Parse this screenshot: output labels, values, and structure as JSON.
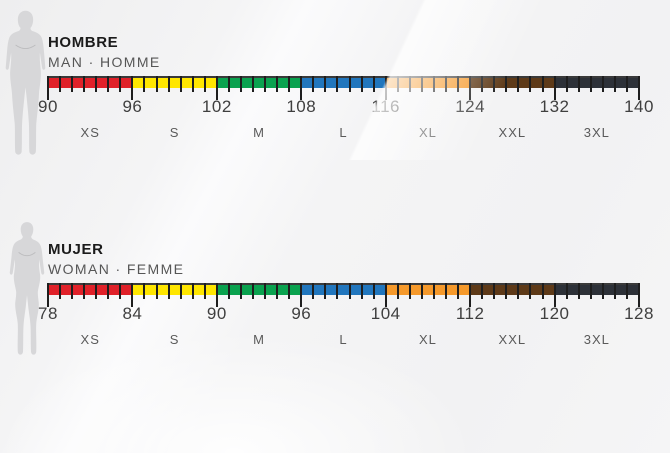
{
  "sections": [
    {
      "id": "men",
      "title": "HOMBRE",
      "subtitle": "MAN · HOMME",
      "figure_icon": "man-silhouette-icon",
      "boundaries": [
        "90",
        "96",
        "102",
        "108",
        "116",
        "124",
        "132",
        "140"
      ],
      "sizes": [
        {
          "label": "XS",
          "color": "#e02129"
        },
        {
          "label": "S",
          "color": "#ffe600"
        },
        {
          "label": "M",
          "color": "#0aa24f"
        },
        {
          "label": "L",
          "color": "#2176bd"
        },
        {
          "label": "XL",
          "color": "#f5992b"
        },
        {
          "label": "XXL",
          "color": "#5e3a18"
        },
        {
          "label": "3XL",
          "color": "#2d3138"
        }
      ]
    },
    {
      "id": "women",
      "title": "MUJER",
      "subtitle": "WOMAN · FEMME",
      "figure_icon": "woman-silhouette-icon",
      "boundaries": [
        "78",
        "84",
        "90",
        "96",
        "104",
        "112",
        "120",
        "128"
      ],
      "sizes": [
        {
          "label": "XS",
          "color": "#e02129"
        },
        {
          "label": "S",
          "color": "#ffe600"
        },
        {
          "label": "M",
          "color": "#0aa24f"
        },
        {
          "label": "L",
          "color": "#2176bd"
        },
        {
          "label": "XL",
          "color": "#f5992b"
        },
        {
          "label": "XXL",
          "color": "#5e3a18"
        },
        {
          "label": "3XL",
          "color": "#2d3138"
        }
      ]
    }
  ],
  "style": {
    "band_border_color": "#3a3a3a",
    "tick_color": "#1e1e1e",
    "number_color": "#3f3f3f",
    "size_label_color": "#5a5a5a",
    "title_color": "#1b1b1b",
    "subtitle_color": "#565656",
    "silhouette_color": "#d7d7d9",
    "background_color": "#f3f3f4",
    "minor_ticks_per_segment": 6
  }
}
